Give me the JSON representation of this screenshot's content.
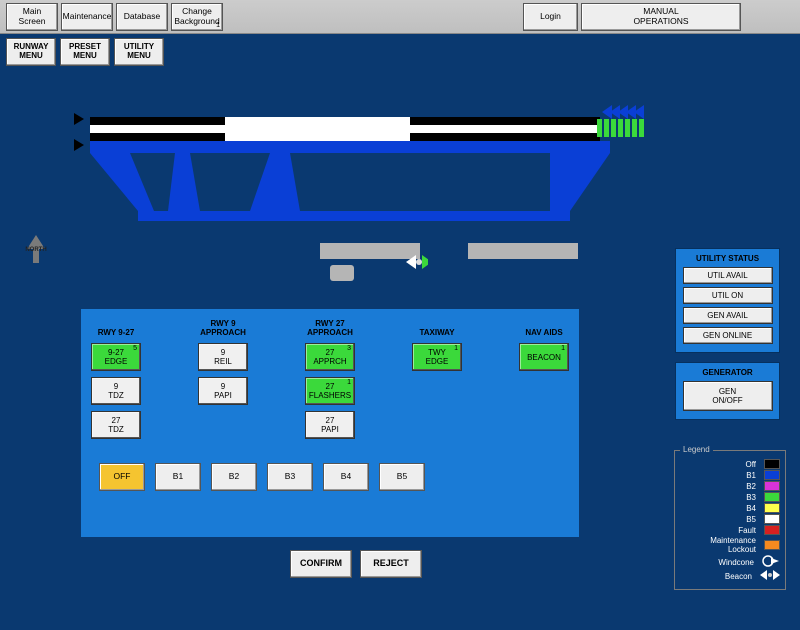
{
  "topbar": {
    "main": "Main\nScreen",
    "maintenance": "Maintenance",
    "database": "Database",
    "change_bg": "Change\nBackground",
    "change_bg_sup": "1",
    "login": "Login",
    "manual": "MANUAL\nOPERATIONS"
  },
  "secondbar": {
    "runway": "RUNWAY\nMENU",
    "preset": "PRESET\nMENU",
    "utility": "UTILITY\nMENU"
  },
  "north_label": "NORTH",
  "diagram": {
    "runway_outer_color": "#000000",
    "runway_inner_color": "#ffffff",
    "taxiway_color": "#0a3fd6",
    "light_color": "#3bd93b",
    "arrow_color": "#0a3fd6",
    "apron_color": "#b5b5b5"
  },
  "panel": {
    "columns": [
      {
        "title": "RWY 9-27",
        "items": [
          {
            "l1": "9-27",
            "l2": "EDGE",
            "color": "green",
            "sup": "5"
          },
          {
            "l1": "9",
            "l2": "TDZ",
            "color": "white"
          },
          {
            "l1": "27",
            "l2": "TDZ",
            "color": "white"
          }
        ]
      },
      {
        "title": "RWY 9\nAPPROACH",
        "items": [
          {
            "l1": "9",
            "l2": "REIL",
            "color": "white"
          },
          {
            "l1": "9",
            "l2": "PAPI",
            "color": "white"
          }
        ]
      },
      {
        "title": "RWY 27\nAPPROACH",
        "items": [
          {
            "l1": "27",
            "l2": "APPRCH",
            "color": "green",
            "sup": "3"
          },
          {
            "l1": "27",
            "l2": "FLASHERS",
            "color": "green",
            "sup": "1"
          },
          {
            "l1": "27",
            "l2": "PAPI",
            "color": "white"
          }
        ]
      },
      {
        "title": "TAXIWAY",
        "items": [
          {
            "l1": "TWY",
            "l2": "EDGE",
            "color": "green",
            "sup": "1"
          }
        ]
      },
      {
        "title": "NAV AIDS",
        "items": [
          {
            "l1": "BEACON",
            "l2": "",
            "color": "green",
            "sup": "1"
          }
        ]
      }
    ],
    "brightness": [
      "OFF",
      "B1",
      "B2",
      "B3",
      "B4",
      "B5"
    ]
  },
  "confirm": {
    "confirm": "CONFIRM",
    "reject": "REJECT"
  },
  "utility": {
    "title": "UTILITY STATUS",
    "items": [
      "UTIL AVAIL",
      "UTIL ON",
      "GEN AVAIL",
      "GEN ONLINE"
    ]
  },
  "generator": {
    "title": "GENERATOR",
    "button": "GEN\nON/OFF"
  },
  "legend": {
    "title": "Legend",
    "rows": [
      {
        "label": "Off",
        "color": "#000000"
      },
      {
        "label": "B1",
        "color": "#0a3fd6"
      },
      {
        "label": "B2",
        "color": "#d933d9"
      },
      {
        "label": "B3",
        "color": "#3bd93b"
      },
      {
        "label": "B4",
        "color": "#ffff4d"
      },
      {
        "label": "B5",
        "color": "#ffffff"
      },
      {
        "label": "Fault",
        "color": "#d62020"
      },
      {
        "label": "Maintenance\nLockout",
        "color": "#f58a1f"
      },
      {
        "label": "Windcone",
        "icon": "windcone"
      },
      {
        "label": "Beacon",
        "icon": "beacon"
      }
    ]
  }
}
